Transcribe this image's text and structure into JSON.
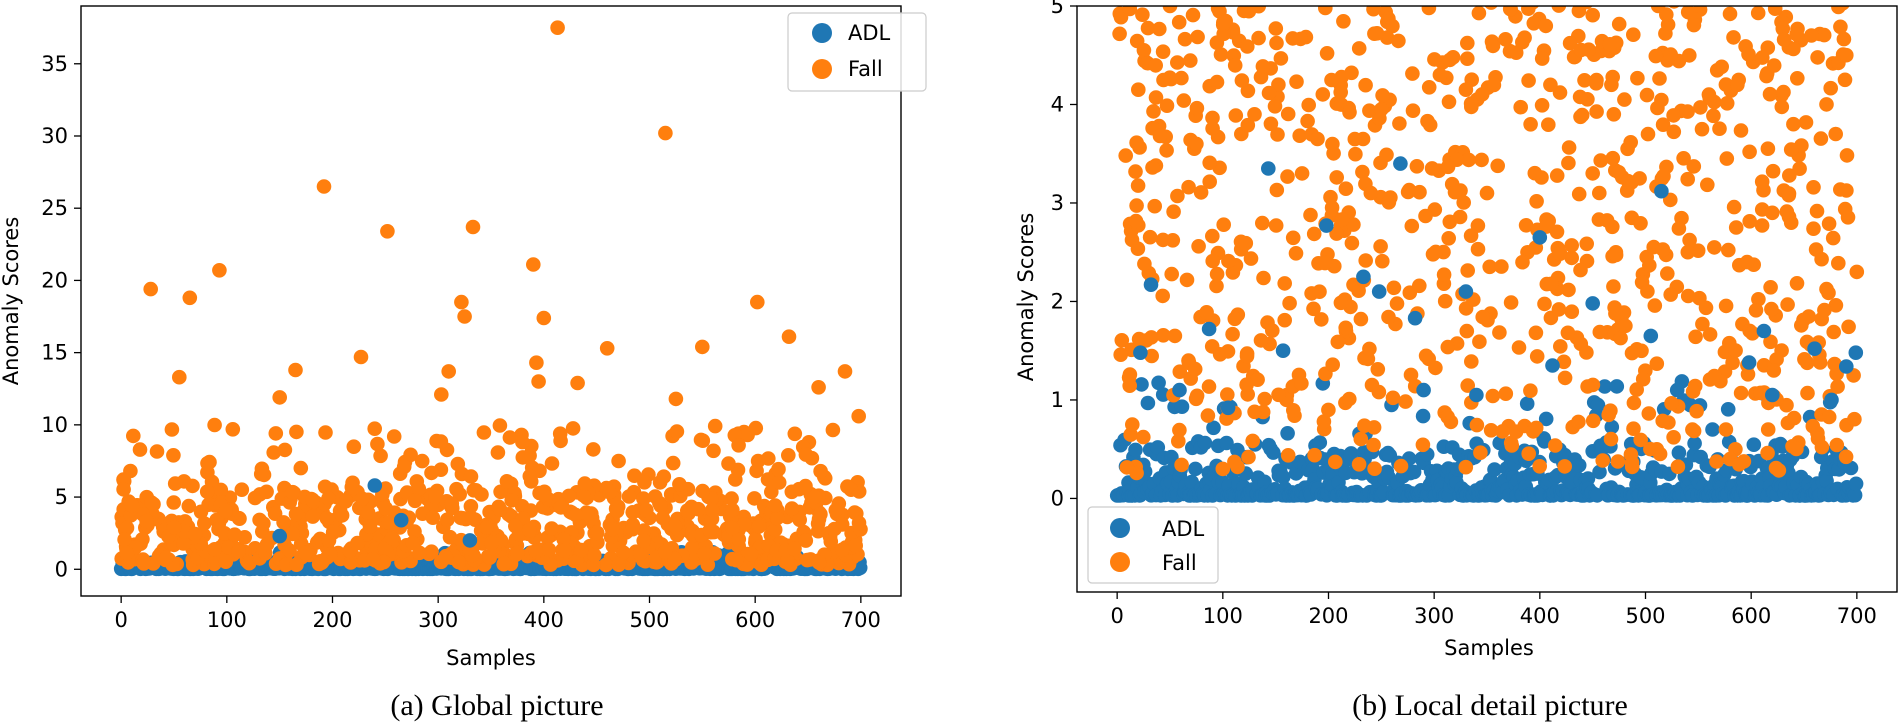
{
  "colors": {
    "adl": "#1f77b4",
    "fall": "#ff7f0e"
  },
  "chart_data": [
    {
      "type": "scatter",
      "caption": "(a) Global picture",
      "xlabel": "Samples",
      "ylabel": "Anomaly Scores",
      "xlim": [
        -38,
        738
      ],
      "ylim": [
        -1.85,
        39.0
      ],
      "xticks": [
        0,
        100,
        200,
        300,
        400,
        500,
        600,
        700
      ],
      "yticks": [
        0,
        5,
        10,
        15,
        20,
        25,
        30,
        35
      ],
      "legend": {
        "position": "top-right",
        "entries": [
          "ADL",
          "Fall"
        ]
      },
      "series": [
        {
          "name": "ADL",
          "kind": "adl",
          "notable": [
            [
              240,
              5.8
            ],
            [
              265,
              3.4
            ],
            [
              150,
              2.3
            ],
            [
              330,
              2.0
            ]
          ]
        },
        {
          "name": "Fall",
          "kind": "fall",
          "notable": [
            [
              413,
              37.5
            ],
            [
              515,
              30.2
            ],
            [
              192,
              26.5
            ],
            [
              252,
              23.4
            ],
            [
              333,
              23.7
            ],
            [
              390,
              21.1
            ],
            [
              93,
              20.7
            ],
            [
              28,
              19.4
            ],
            [
              65,
              18.8
            ],
            [
              322,
              18.5
            ],
            [
              602,
              18.5
            ],
            [
              325,
              17.5
            ],
            [
              400,
              17.4
            ],
            [
              632,
              16.1
            ],
            [
              460,
              15.3
            ],
            [
              550,
              15.4
            ],
            [
              227,
              14.7
            ],
            [
              393,
              14.3
            ],
            [
              165,
              13.8
            ],
            [
              310,
              13.7
            ],
            [
              685,
              13.7
            ],
            [
              55,
              13.3
            ],
            [
              395,
              13.0
            ],
            [
              432,
              12.9
            ],
            [
              660,
              12.6
            ],
            [
              303,
              12.1
            ],
            [
              525,
              11.8
            ],
            [
              150,
              11.9
            ],
            [
              698,
              10.6
            ]
          ]
        }
      ]
    },
    {
      "type": "scatter",
      "caption": "(b) Local detail picture",
      "xlabel": "Samples",
      "ylabel": "Anomaly Scores",
      "xlim": [
        -38,
        738
      ],
      "ylim": [
        -0.95,
        5.0
      ],
      "xticks": [
        0,
        100,
        200,
        300,
        400,
        500,
        600,
        700
      ],
      "yticks": [
        0,
        1,
        2,
        3,
        4,
        5
      ],
      "legend": {
        "position": "bottom-left",
        "entries": [
          "ADL",
          "Fall"
        ]
      },
      "series": [
        {
          "name": "ADL",
          "kind": "adl",
          "notable": [
            [
              143,
              3.35
            ],
            [
              268,
              3.4
            ],
            [
              515,
              3.12
            ],
            [
              198,
              2.77
            ],
            [
              400,
              2.65
            ],
            [
              233,
              2.25
            ],
            [
              32,
              2.17
            ],
            [
              330,
              2.1
            ],
            [
              248,
              2.1
            ],
            [
              282,
              1.83
            ],
            [
              87,
              1.72
            ],
            [
              450,
              1.98
            ],
            [
              612,
              1.7
            ],
            [
              505,
              1.65
            ],
            [
              660,
              1.52
            ],
            [
              699,
              1.48
            ],
            [
              22,
              1.48
            ],
            [
              157,
              1.5
            ],
            [
              412,
              1.35
            ],
            [
              690,
              1.34
            ],
            [
              598,
              1.38
            ],
            [
              290,
              1.1
            ],
            [
              340,
              1.05
            ],
            [
              530,
              1.1
            ],
            [
              620,
              1.05
            ],
            [
              676,
              1.0
            ],
            [
              105,
              0.92
            ],
            [
              59,
              1.1
            ]
          ]
        },
        {
          "name": "Fall",
          "kind": "fall",
          "notable": [
            [
              12,
              4.97
            ],
            [
              50,
              5.0
            ],
            [
              120,
              4.95
            ],
            [
              197,
              4.98
            ],
            [
              295,
              4.98
            ],
            [
              372,
              4.97
            ],
            [
              437,
              4.95
            ],
            [
              512,
              5.0
            ],
            [
              580,
              4.92
            ],
            [
              657,
              4.7
            ],
            [
              690,
              4.5
            ],
            [
              20,
              4.15
            ],
            [
              130,
              3.9
            ],
            [
              250,
              3.95
            ],
            [
              330,
              4.15
            ],
            [
              410,
              4.2
            ],
            [
              470,
              3.9
            ],
            [
              560,
              4.1
            ],
            [
              640,
              3.8
            ],
            [
              680,
              3.7
            ],
            [
              75,
              3.6
            ],
            [
              175,
              3.3
            ],
            [
              240,
              3.1
            ],
            [
              350,
              3.1
            ],
            [
              450,
              3.3
            ],
            [
              540,
              2.5
            ],
            [
              620,
              2.9
            ],
            [
              700,
              2.3
            ]
          ]
        }
      ]
    }
  ]
}
